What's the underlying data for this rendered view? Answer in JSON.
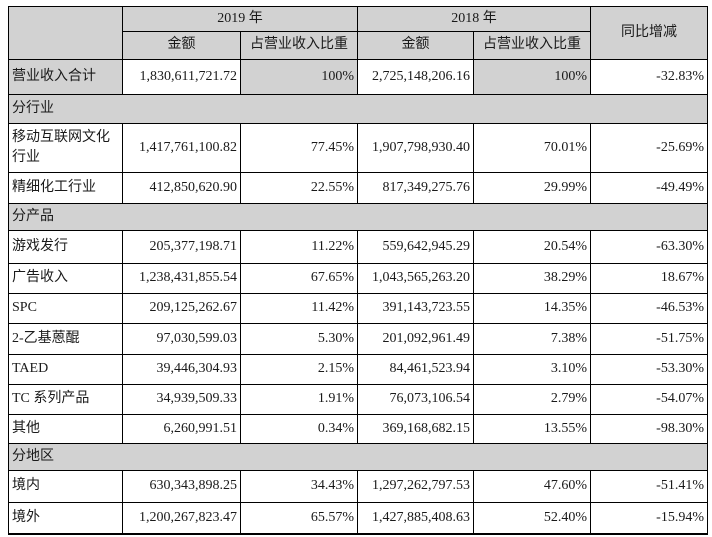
{
  "colors": {
    "shaded_bg": "#d2d2d2",
    "border": "#000000",
    "background": "#ffffff"
  },
  "table": {
    "header": {
      "corner": "",
      "year_2019": "2019 年",
      "year_2018": "2018 年",
      "yoy": "同比增减",
      "amount_2019": "金额",
      "pct_2019": "占营业收入比重",
      "amount_2018": "金额",
      "pct_2018": "占营业收入比重"
    },
    "rows": [
      {
        "type": "total",
        "label": "营业收入合计",
        "a19": "1,830,611,721.72",
        "p19": "100%",
        "a18": "2,725,148,206.16",
        "p18": "100%",
        "yoy": "-32.83%"
      },
      {
        "type": "section",
        "label": "分行业"
      },
      {
        "type": "data",
        "label": "移动互联网文化行业",
        "a19": "1,417,761,100.82",
        "p19": "77.45%",
        "a18": "1,907,798,930.40",
        "p18": "70.01%",
        "yoy": "-25.69%"
      },
      {
        "type": "data",
        "label": "精细化工行业",
        "a19": "412,850,620.90",
        "p19": "22.55%",
        "a18": "817,349,275.76",
        "p18": "29.99%",
        "yoy": "-49.49%"
      },
      {
        "type": "section",
        "label": "分产品"
      },
      {
        "type": "data",
        "label": "游戏发行",
        "a19": "205,377,198.71",
        "p19": "11.22%",
        "a18": "559,642,945.29",
        "p18": "20.54%",
        "yoy": "-63.30%"
      },
      {
        "type": "data",
        "label": "广告收入",
        "a19": "1,238,431,855.54",
        "p19": "67.65%",
        "a18": "1,043,565,263.20",
        "p18": "38.29%",
        "yoy": "18.67%"
      },
      {
        "type": "data",
        "label": "SPC",
        "a19": "209,125,262.67",
        "p19": "11.42%",
        "a18": "391,143,723.55",
        "p18": "14.35%",
        "yoy": "-46.53%"
      },
      {
        "type": "data",
        "label": "2-乙基蒽醌",
        "a19": "97,030,599.03",
        "p19": "5.30%",
        "a18": "201,092,961.49",
        "p18": "7.38%",
        "yoy": "-51.75%"
      },
      {
        "type": "data",
        "label": "TAED",
        "a19": "39,446,304.93",
        "p19": "2.15%",
        "a18": "84,461,523.94",
        "p18": "3.10%",
        "yoy": "-53.30%"
      },
      {
        "type": "data",
        "label": "TC 系列产品",
        "a19": "34,939,509.33",
        "p19": "1.91%",
        "a18": "76,073,106.54",
        "p18": "2.79%",
        "yoy": "-54.07%"
      },
      {
        "type": "data",
        "label": "其他",
        "a19": "6,260,991.51",
        "p19": "0.34%",
        "a18": "369,168,682.15",
        "p18": "13.55%",
        "yoy": "-98.30%"
      },
      {
        "type": "section",
        "label": "分地区"
      },
      {
        "type": "data",
        "label": "境内",
        "a19": "630,343,898.25",
        "p19": "34.43%",
        "a18": "1,297,262,797.53",
        "p18": "47.60%",
        "yoy": "-51.41%"
      },
      {
        "type": "data",
        "label": "境外",
        "a19": "1,200,267,823.47",
        "p19": "65.57%",
        "a18": "1,427,885,408.63",
        "p18": "52.40%",
        "yoy": "-15.94%"
      }
    ]
  }
}
